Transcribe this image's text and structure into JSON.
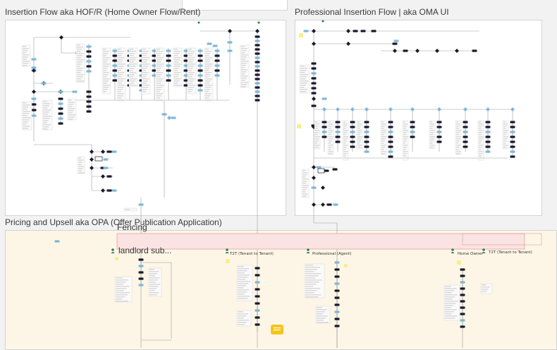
{
  "frames": {
    "insertion": {
      "title": "Insertion Flow aka HOF/R (Home Owner Flow/Rent)"
    },
    "professional": {
      "title": "Professional Insertion Flow | aka OMA UI"
    },
    "pricing": {
      "title": "Pricing and Upsell aka OPA (Offer Publication Application)"
    }
  },
  "pricing_labels": {
    "fencing": "Fencing",
    "landlord": "landlord sub...",
    "t2t_1": "T2T (Tenant to Tenant)",
    "professional_agent": "Professional (Agent)",
    "home_owner": "Home Owner",
    "t2t_2": "T2T (Tenant to Tenant)"
  },
  "colors": {
    "node_dark": "#1a1a2e",
    "node_blue": "#7fb8d8",
    "connector": "#8a8a8a",
    "pricing_bg": "#fdf6e6",
    "fencing_bg": "#fbe3e3",
    "comment": "#f5c518",
    "note_yellow": "#f8f08a"
  },
  "icons": {
    "comment": "comment-icon",
    "person": "person-icon"
  }
}
